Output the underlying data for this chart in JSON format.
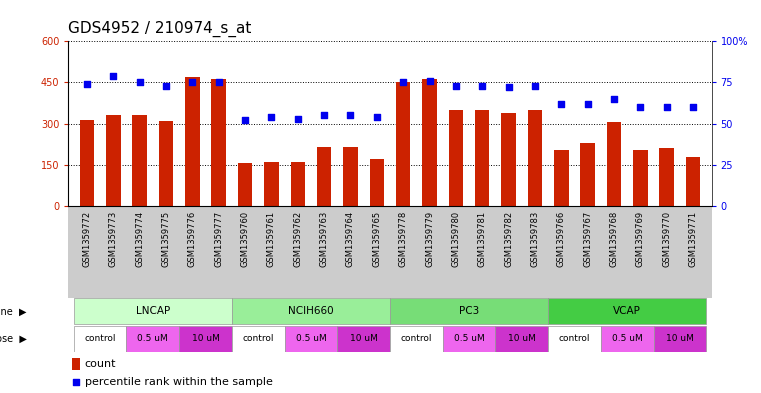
{
  "title": "GDS4952 / 210974_s_at",
  "samples": [
    "GSM1359772",
    "GSM1359773",
    "GSM1359774",
    "GSM1359775",
    "GSM1359776",
    "GSM1359777",
    "GSM1359760",
    "GSM1359761",
    "GSM1359762",
    "GSM1359763",
    "GSM1359764",
    "GSM1359765",
    "GSM1359778",
    "GSM1359779",
    "GSM1359780",
    "GSM1359781",
    "GSM1359782",
    "GSM1359783",
    "GSM1359766",
    "GSM1359767",
    "GSM1359768",
    "GSM1359769",
    "GSM1359770",
    "GSM1359771"
  ],
  "counts": [
    315,
    330,
    330,
    308,
    470,
    462,
    155,
    162,
    160,
    215,
    215,
    170,
    450,
    462,
    350,
    350,
    340,
    350,
    205,
    230,
    305,
    205,
    210,
    180
  ],
  "percentiles": [
    74,
    79,
    75,
    73,
    75,
    75,
    52,
    54,
    53,
    55,
    55,
    54,
    75,
    76,
    73,
    73,
    72,
    73,
    62,
    62,
    65,
    60,
    60,
    60
  ],
  "bar_color": "#cc2200",
  "dot_color": "#0000ee",
  "ylim_left": [
    0,
    600
  ],
  "ylim_right": [
    0,
    100
  ],
  "yticks_left": [
    0,
    150,
    300,
    450,
    600
  ],
  "yticks_right": [
    0,
    25,
    50,
    75,
    100
  ],
  "cell_lines": [
    {
      "name": "LNCAP",
      "start": 0,
      "end": 6,
      "color": "#ccffcc"
    },
    {
      "name": "NCIH660",
      "start": 6,
      "end": 12,
      "color": "#99ee99"
    },
    {
      "name": "PC3",
      "start": 12,
      "end": 18,
      "color": "#77dd77"
    },
    {
      "name": "VCAP",
      "start": 18,
      "end": 24,
      "color": "#44cc44"
    }
  ],
  "doses": [
    {
      "name": "control",
      "start": 0,
      "end": 2,
      "color": "#ffffff"
    },
    {
      "name": "0.5 uM",
      "start": 2,
      "end": 4,
      "color": "#ee66ee"
    },
    {
      "name": "10 uM",
      "start": 4,
      "end": 6,
      "color": "#cc33cc"
    },
    {
      "name": "control",
      "start": 6,
      "end": 8,
      "color": "#ffffff"
    },
    {
      "name": "0.5 uM",
      "start": 8,
      "end": 10,
      "color": "#ee66ee"
    },
    {
      "name": "10 uM",
      "start": 10,
      "end": 12,
      "color": "#cc33cc"
    },
    {
      "name": "control",
      "start": 12,
      "end": 14,
      "color": "#ffffff"
    },
    {
      "name": "0.5 uM",
      "start": 14,
      "end": 16,
      "color": "#ee66ee"
    },
    {
      "name": "10 uM",
      "start": 16,
      "end": 18,
      "color": "#cc33cc"
    },
    {
      "name": "control",
      "start": 18,
      "end": 20,
      "color": "#ffffff"
    },
    {
      "name": "0.5 uM",
      "start": 20,
      "end": 22,
      "color": "#ee66ee"
    },
    {
      "name": "10 uM",
      "start": 22,
      "end": 24,
      "color": "#cc33cc"
    }
  ],
  "legend_count_color": "#cc2200",
  "legend_dot_color": "#0000ee",
  "background_color": "#ffffff",
  "plot_bg_color": "#ffffff",
  "xlabels_bg_color": "#cccccc",
  "grid_color": "#000000",
  "tick_label_color_left": "#cc2200",
  "tick_label_color_right": "#0000ee",
  "title_fontsize": 11,
  "tick_fontsize": 7,
  "label_fontsize": 8
}
